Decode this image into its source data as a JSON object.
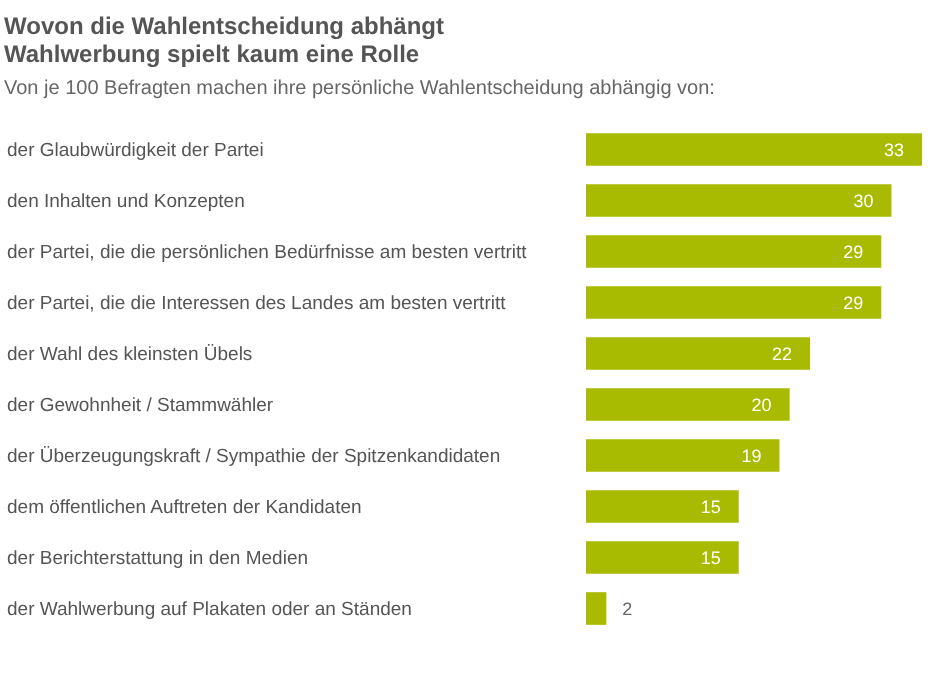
{
  "chart_data": {
    "type": "bar",
    "orientation": "horizontal",
    "title": "Wovon die Wahlentscheidung abhängt",
    "subtitle": "Wahlwerbung spielt kaum eine Rolle",
    "annotations": [
      "Von je 100 Befragten machen ihre persönliche Wahlentscheidung abhängig von:"
    ],
    "categories": [
      "der Glaubwürdigkeit der Partei",
      "den Inhalten und Konzepten",
      "der Partei, die die persönlichen Bedürfnisse am besten vertritt",
      "der Partei, die die Interessen des Landes am besten vertritt",
      "der Wahl des kleinsten Übels",
      "der Gewohnheit / Stammwähler",
      "der Überzeugungskraft / Sympathie der Spitzenkandidaten",
      "dem öffentlichen Auftreten der Kandidaten",
      "der Berichterstattung in den Medien",
      "der Wahlwerbung auf Plakaten oder an Ständen"
    ],
    "values": [
      33,
      30,
      29,
      29,
      22,
      20,
      19,
      15,
      15,
      2
    ],
    "color": "#a9bb00",
    "data_labels": true
  }
}
